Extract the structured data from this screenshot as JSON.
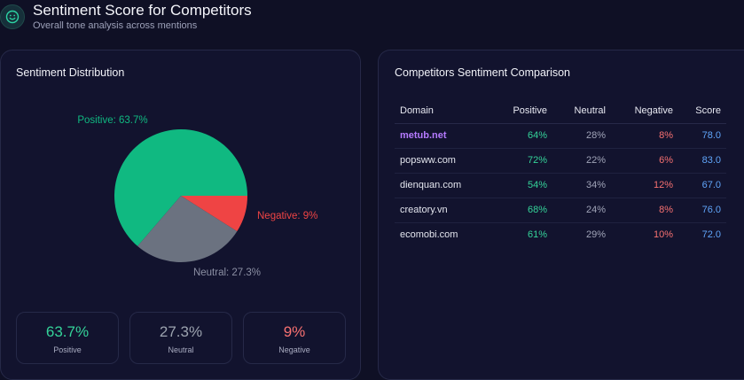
{
  "header": {
    "title": "Sentiment Score for Competitors",
    "subtitle": "Overall tone analysis across mentions",
    "icon": "smile-icon"
  },
  "distribution": {
    "title": "Sentiment Distribution",
    "slices": [
      {
        "name": "Positive",
        "value": 63.7,
        "label": "Positive: 63.7%",
        "color": "#10b981"
      },
      {
        "name": "Negative",
        "value": 9,
        "label": "Negative: 9%",
        "color": "#ef4444"
      },
      {
        "name": "Neutral",
        "value": 27.3,
        "label": "Neutral: 27.3%",
        "color": "#6b7280"
      }
    ],
    "stats": [
      {
        "value": "63.7%",
        "label": "Positive",
        "color": "#34d399"
      },
      {
        "value": "27.3%",
        "label": "Neutral",
        "color": "#9ca3af"
      },
      {
        "value": "9%",
        "label": "Negative",
        "color": "#f87171"
      }
    ]
  },
  "comparison": {
    "title": "Competitors Sentiment Comparison",
    "columns": [
      "Domain",
      "Positive",
      "Neutral",
      "Negative",
      "Score"
    ],
    "rows": [
      {
        "domain": "metub.net",
        "positive": "64%",
        "neutral": "28%",
        "negative": "8%",
        "score": "78.0",
        "highlight": true
      },
      {
        "domain": "popsww.com",
        "positive": "72%",
        "neutral": "22%",
        "negative": "6%",
        "score": "83.0",
        "highlight": false
      },
      {
        "domain": "dienquan.com",
        "positive": "54%",
        "neutral": "34%",
        "negative": "12%",
        "score": "67.0",
        "highlight": false
      },
      {
        "domain": "creatory.vn",
        "positive": "68%",
        "neutral": "24%",
        "negative": "8%",
        "score": "76.0",
        "highlight": false
      },
      {
        "domain": "ecomobi.com",
        "positive": "61%",
        "neutral": "29%",
        "negative": "10%",
        "score": "72.0",
        "highlight": false
      }
    ]
  },
  "colors": {
    "background": "#0f1025",
    "card": "#12132e",
    "accent_purple": "#b57bff",
    "score_blue": "#60a5fa"
  }
}
